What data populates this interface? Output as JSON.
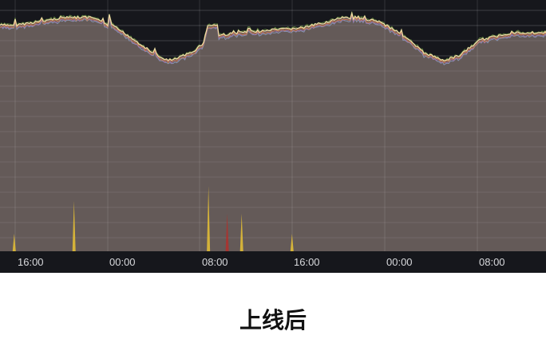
{
  "chart_data": {
    "type": "area",
    "stacked": true,
    "title": "",
    "xlabel": "",
    "ylabel": "",
    "ylim": [
      0,
      100
    ],
    "grid": true,
    "x_ticks": [
      "16:00",
      "00:00",
      "08:00",
      "16:00",
      "00:00",
      "08:00"
    ],
    "series": [
      {
        "color": "#f2dca8",
        "points": [
          [
            "14:41",
            90
          ],
          [
            "16:00",
            90
          ],
          [
            "18:50",
            92
          ],
          [
            "20:12",
            93
          ],
          [
            "22:37",
            93
          ],
          [
            "00:00",
            90
          ],
          [
            "00:08",
            94
          ],
          [
            "00:20",
            90
          ],
          [
            "01:43",
            86
          ],
          [
            "04:29",
            77
          ],
          [
            "05:31",
            76
          ],
          [
            "07:14",
            79
          ],
          [
            "08:17",
            83
          ],
          [
            "08:38",
            90
          ],
          [
            "09:28",
            90
          ],
          [
            "09:36",
            86
          ],
          [
            "11:26",
            87
          ],
          [
            "16:57",
            89
          ],
          [
            "20:24",
            93
          ],
          [
            "23:10",
            92
          ],
          [
            "01:14",
            87
          ],
          [
            "03:19",
            79
          ],
          [
            "05:03",
            76
          ],
          [
            "06:25",
            78
          ],
          [
            "08:08",
            84
          ],
          [
            "10:54",
            87
          ],
          [
            "13:56",
            87
          ]
        ]
      },
      {
        "color": "#e8c234",
        "points": [
          [
            "15:55",
            7
          ],
          [
            "21:05",
            20
          ],
          [
            "08:42",
            26
          ],
          [
            "11:34",
            15
          ],
          [
            "15:55",
            7
          ]
        ]
      },
      {
        "color": "#b0302c",
        "points": [
          [
            "10:19",
            15
          ]
        ]
      }
    ]
  },
  "caption": "上线后"
}
